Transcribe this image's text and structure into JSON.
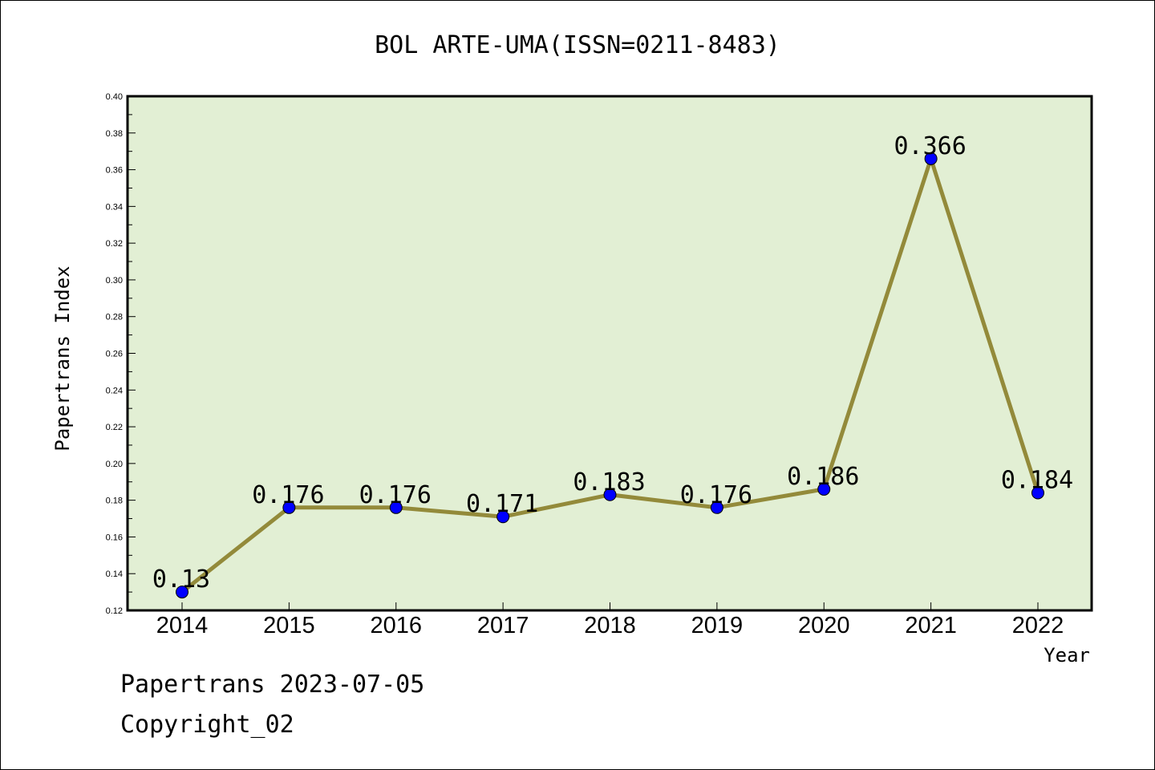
{
  "chart_data": {
    "type": "line",
    "title": "BOL ARTE-UMA(ISSN=0211-8483)",
    "xlabel": "Year",
    "ylabel": "Papertrans Index",
    "categories": [
      "2014",
      "2015",
      "2016",
      "2017",
      "2018",
      "2019",
      "2020",
      "2021",
      "2022"
    ],
    "series": [
      {
        "values": [
          0.13,
          0.176,
          0.176,
          0.171,
          0.183,
          0.176,
          0.186,
          0.366,
          0.184
        ],
        "data_labels": [
          "0.13",
          "0.176",
          "0.176",
          "0.171",
          "0.183",
          "0.176",
          "0.186",
          "0.366",
          "0.184"
        ],
        "line_color": "#938a3a",
        "marker_color": "#0000ff"
      }
    ],
    "ylim": [
      0.12,
      0.4
    ],
    "yticks": [
      "0.12",
      "0.14",
      "0.16",
      "0.18",
      "0.20",
      "0.22",
      "0.24",
      "0.26",
      "0.28",
      "0.30",
      "0.32",
      "0.34",
      "0.36",
      "0.38",
      "0.40"
    ],
    "grid": false,
    "plot_background": "#e2efd4"
  },
  "footer": {
    "line1": "Papertrans 2023-07-05",
    "line2": "Copyright_02"
  }
}
